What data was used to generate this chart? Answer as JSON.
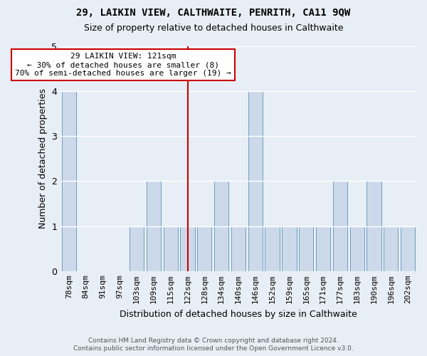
{
  "title": "29, LAIKIN VIEW, CALTHWAITE, PENRITH, CA11 9QW",
  "subtitle": "Size of property relative to detached houses in Calthwaite",
  "xlabel": "Distribution of detached houses by size in Calthwaite",
  "ylabel": "Number of detached properties",
  "categories": [
    "78sqm",
    "84sqm",
    "91sqm",
    "97sqm",
    "103sqm",
    "109sqm",
    "115sqm",
    "122sqm",
    "128sqm",
    "134sqm",
    "140sqm",
    "146sqm",
    "152sqm",
    "159sqm",
    "165sqm",
    "171sqm",
    "177sqm",
    "183sqm",
    "190sqm",
    "196sqm",
    "202sqm"
  ],
  "values": [
    4,
    0,
    0,
    0,
    1,
    2,
    1,
    1,
    1,
    2,
    1,
    4,
    1,
    1,
    1,
    1,
    2,
    1,
    2,
    1,
    1
  ],
  "bar_color": "#ccd9ea",
  "bar_edge_color": "#6b9dc2",
  "highlight_index": 7,
  "highlight_line_color": "#cc0000",
  "annotation_line1": "29 LAIKIN VIEW: 121sqm",
  "annotation_line2": "← 30% of detached houses are smaller (8)",
  "annotation_line3": "70% of semi-detached houses are larger (19) →",
  "annotation_box_facecolor": "#ffffff",
  "annotation_box_edgecolor": "#cc0000",
  "ylim": [
    0,
    5
  ],
  "yticks": [
    0,
    1,
    2,
    3,
    4,
    5
  ],
  "bg_color": "#e8eef5",
  "grid_color": "#ffffff",
  "title_fontsize": 10,
  "subtitle_fontsize": 9,
  "xlabel_fontsize": 9,
  "ylabel_fontsize": 9,
  "tick_fontsize": 8,
  "annotation_fontsize": 8,
  "footer_line1": "Contains HM Land Registry data © Crown copyright and database right 2024.",
  "footer_line2": "Contains public sector information licensed under the Open Government Licence v3.0.",
  "footer_fontsize": 6.5
}
